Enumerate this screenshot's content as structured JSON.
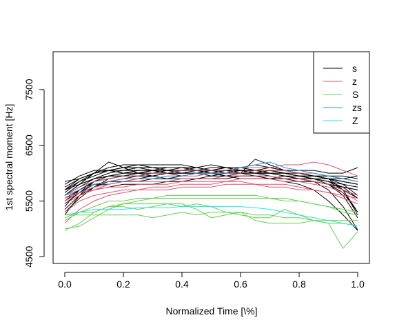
{
  "chart_data": {
    "type": "line",
    "title": "",
    "xlabel": "Normalized Time [\\%]",
    "ylabel": "1st spectral moment [Hz]",
    "xlim": [
      -0.04,
      1.04
    ],
    "ylim": [
      4380,
      8180
    ],
    "xticks": [
      0.0,
      0.2,
      0.4,
      0.6,
      0.8,
      1.0
    ],
    "xtick_labels": [
      "0.0",
      "0.2",
      "0.4",
      "0.6",
      "0.8",
      "1.0"
    ],
    "yticks": [
      4500,
      5500,
      6500,
      7500
    ],
    "ytick_labels": [
      "4500",
      "5500",
      "6500",
      "7500"
    ],
    "legend_position": "top-right",
    "legend": [
      {
        "label": "s",
        "color": "#000000"
      },
      {
        "label": "z",
        "color": "#DF536B"
      },
      {
        "label": "S",
        "color": "#61D04F"
      },
      {
        "label": "zs",
        "color": "#2297E6"
      },
      {
        "label": "Z",
        "color": "#28E2E5"
      }
    ],
    "x": [
      0.0,
      0.05,
      0.1,
      0.15,
      0.2,
      0.25,
      0.3,
      0.35,
      0.4,
      0.45,
      0.5,
      0.55,
      0.6,
      0.65,
      0.7,
      0.75,
      0.8,
      0.85,
      0.9,
      0.95,
      1.0
    ],
    "series": [
      {
        "group": "s",
        "color": "#000000",
        "values": [
          5250,
          5600,
          5850,
          5950,
          6000,
          6050,
          6050,
          6050,
          6050,
          6050,
          6050,
          6050,
          6050,
          6000,
          6000,
          6000,
          5950,
          5900,
          5800,
          5600,
          5200
        ]
      },
      {
        "group": "s",
        "color": "#000000",
        "values": [
          5600,
          5800,
          5900,
          5950,
          5950,
          6000,
          6050,
          6000,
          6050,
          6100,
          6050,
          6100,
          6050,
          6050,
          6000,
          6000,
          5950,
          5950,
          5950,
          5900,
          5850
        ]
      },
      {
        "group": "s",
        "color": "#000000",
        "values": [
          5850,
          5900,
          6000,
          6050,
          6100,
          6150,
          6150,
          6150,
          6150,
          6100,
          6150,
          6100,
          6100,
          6150,
          6100,
          6050,
          6050,
          6050,
          6000,
          6000,
          6100
        ]
      },
      {
        "group": "s",
        "color": "#000000",
        "values": [
          5700,
          5850,
          5950,
          6050,
          6100,
          6100,
          6050,
          6100,
          6100,
          6050,
          6050,
          6100,
          6050,
          6000,
          6050,
          6000,
          6000,
          5950,
          5900,
          5800,
          5600
        ]
      },
      {
        "group": "s",
        "color": "#000000",
        "values": [
          5450,
          5650,
          5800,
          5850,
          5900,
          5950,
          5950,
          6000,
          6050,
          6050,
          6050,
          6050,
          6000,
          6050,
          6050,
          6000,
          5950,
          5950,
          5900,
          5700,
          5300
        ]
      },
      {
        "group": "s",
        "color": "#000000",
        "values": [
          5300,
          5550,
          5750,
          5900,
          5950,
          6000,
          6000,
          6000,
          6050,
          6050,
          6000,
          6000,
          6050,
          6050,
          6000,
          5950,
          5900,
          5850,
          5700,
          5400,
          4980
        ]
      },
      {
        "group": "s",
        "color": "#000000",
        "values": [
          5500,
          5700,
          5850,
          5900,
          5950,
          5950,
          5950,
          6000,
          6000,
          6000,
          6000,
          5950,
          5950,
          5950,
          5950,
          5900,
          5900,
          5850,
          5800,
          5750,
          5700
        ]
      },
      {
        "group": "s",
        "color": "#000000",
        "values": [
          5650,
          5850,
          6000,
          6100,
          6150,
          6150,
          6100,
          6100,
          6100,
          6050,
          6000,
          6050,
          6050,
          6000,
          6000,
          5950,
          5950,
          5900,
          5850,
          5700,
          5250
        ]
      },
      {
        "group": "s",
        "color": "#000000",
        "values": [
          5750,
          5900,
          6000,
          6050,
          6000,
          6050,
          6050,
          6050,
          6100,
          6100,
          6050,
          6050,
          6100,
          6050,
          6050,
          6000,
          5950,
          5900,
          5900,
          5850,
          5800
        ]
      },
      {
        "group": "s",
        "color": "#000000",
        "values": [
          5400,
          5700,
          5800,
          5800,
          5850,
          5900,
          5950,
          5900,
          5950,
          6000,
          5950,
          6000,
          6000,
          5950,
          5900,
          5950,
          5900,
          5850,
          5800,
          5650,
          5300
        ]
      },
      {
        "group": "s",
        "color": "#000000",
        "values": [
          5600,
          5750,
          5900,
          5950,
          6000,
          6000,
          5950,
          6000,
          6000,
          6000,
          6050,
          6050,
          6000,
          6000,
          6000,
          5950,
          5900,
          5900,
          5850,
          5750,
          5550
        ]
      },
      {
        "group": "s",
        "color": "#000000",
        "values": [
          5550,
          5700,
          5850,
          5900,
          5950,
          6000,
          6000,
          6050,
          6000,
          6050,
          6050,
          6100,
          6050,
          6050,
          6100,
          6050,
          6000,
          5950,
          5900,
          5850,
          5800
        ]
      },
      {
        "group": "s",
        "color": "#000000",
        "values": [
          5700,
          5800,
          5900,
          6000,
          6050,
          6100,
          6100,
          6050,
          6050,
          6050,
          6100,
          6100,
          6100,
          6050,
          6050,
          6050,
          6000,
          5950,
          5950,
          5950,
          5900
        ]
      },
      {
        "group": "s",
        "color": "#000000",
        "values": [
          5800,
          5950,
          6050,
          6050,
          6000,
          6000,
          6050,
          6000,
          5950,
          6000,
          6000,
          5950,
          6000,
          6000,
          5950,
          5900,
          5900,
          5850,
          5800,
          5700,
          5550
        ]
      },
      {
        "group": "s",
        "color": "#000000",
        "values": [
          5350,
          5600,
          5750,
          5850,
          5850,
          5850,
          5900,
          5900,
          5900,
          5900,
          5950,
          5950,
          5900,
          5900,
          5900,
          5900,
          5850,
          5850,
          5800,
          5750,
          5700
        ]
      },
      {
        "group": "s",
        "color": "#000000",
        "values": [
          5500,
          5650,
          5700,
          5750,
          5800,
          5800,
          5800,
          5850,
          5850,
          5900,
          5900,
          5900,
          5950,
          5950,
          5900,
          5850,
          5800,
          5700,
          5500,
          5250,
          4970
        ]
      },
      {
        "group": "s",
        "color": "#000000",
        "values": [
          5600,
          5800,
          6000,
          6200,
          6100,
          6000,
          6050,
          6000,
          6000,
          6050,
          6000,
          6000,
          6000,
          6250,
          6150,
          6050,
          6000,
          5950,
          5900,
          5850,
          5800
        ]
      },
      {
        "group": "s",
        "color": "#000000",
        "values": [
          5450,
          5650,
          5850,
          5950,
          5950,
          5950,
          6000,
          6000,
          6000,
          6000,
          6050,
          6000,
          6000,
          6000,
          6000,
          5950,
          5900,
          5900,
          5850,
          5800,
          5750
        ]
      },
      {
        "group": "s",
        "color": "#000000",
        "values": [
          5700,
          5900,
          6000,
          6050,
          6050,
          6050,
          6050,
          6000,
          6050,
          6050,
          6000,
          6050,
          6050,
          6000,
          6000,
          6000,
          5950,
          5950,
          5900,
          5900,
          5950
        ]
      },
      {
        "group": "z",
        "color": "#DF536B",
        "values": [
          5550,
          5650,
          5700,
          5750,
          5750,
          5800,
          5800,
          5800,
          5850,
          5850,
          5850,
          5850,
          5900,
          5900,
          5900,
          5850,
          5850,
          5800,
          5750,
          5650,
          5500
        ]
      },
      {
        "group": "z",
        "color": "#DF536B",
        "values": [
          5450,
          5600,
          5700,
          5800,
          5850,
          5850,
          5850,
          5850,
          5900,
          5900,
          5900,
          5950,
          5950,
          5950,
          5950,
          5900,
          5900,
          5850,
          5800,
          5700,
          5600
        ]
      },
      {
        "group": "z",
        "color": "#DF536B",
        "values": [
          5300,
          5500,
          5600,
          5650,
          5700,
          5700,
          5750,
          5750,
          5800,
          5800,
          5800,
          5850,
          5850,
          5800,
          5800,
          5800,
          5750,
          5700,
          5650,
          5550,
          5450
        ]
      },
      {
        "group": "z",
        "color": "#DF536B",
        "values": [
          5600,
          5750,
          5850,
          5900,
          5950,
          5950,
          6000,
          6000,
          6050,
          6050,
          6050,
          6050,
          6100,
          6100,
          6100,
          6150,
          6150,
          6200,
          6150,
          6050,
          5950
        ]
      },
      {
        "group": "z",
        "color": "#DF536B",
        "values": [
          5100,
          5350,
          5500,
          5600,
          5650,
          5700,
          5700,
          5700,
          5750,
          5750,
          5750,
          5800,
          5800,
          5800,
          5750,
          5750,
          5700,
          5700,
          5650,
          5600,
          5550
        ]
      },
      {
        "group": "z",
        "color": "#DF536B",
        "values": [
          5500,
          5650,
          5750,
          5800,
          5850,
          5900,
          5900,
          5950,
          5950,
          5950,
          6000,
          6000,
          6000,
          6050,
          6050,
          6050,
          6000,
          6000,
          5950,
          5900,
          5850
        ]
      },
      {
        "group": "S",
        "color": "#61D04F",
        "values": [
          5000,
          5050,
          5200,
          5350,
          5450,
          5500,
          5550,
          5600,
          5600,
          5600,
          5600,
          5600,
          5600,
          5600,
          5550,
          5550,
          5500,
          5450,
          5400,
          5300,
          5250
        ]
      },
      {
        "group": "S",
        "color": "#61D04F",
        "values": [
          5150,
          5300,
          5300,
          5400,
          5400,
          5350,
          5400,
          5450,
          5400,
          5450,
          5400,
          5300,
          5250,
          5200,
          5200,
          5350,
          5250,
          5150,
          5100,
          4650,
          4950
        ]
      },
      {
        "group": "S",
        "color": "#61D04F",
        "values": [
          5250,
          5250,
          5250,
          5250,
          5250,
          5250,
          5200,
          5250,
          5300,
          5250,
          5300,
          5300,
          5300,
          5250,
          5250,
          5200,
          5200,
          5150,
          5150,
          5150,
          5150
        ]
      },
      {
        "group": "S",
        "color": "#61D04F",
        "values": [
          4970,
          5100,
          5300,
          5400,
          5450,
          5450,
          5450,
          5450,
          5450,
          5350,
          5200,
          5250,
          5300,
          5150,
          5100,
          5100,
          5100,
          5150,
          5100,
          5100,
          5050
        ]
      },
      {
        "group": "S",
        "color": "#61D04F",
        "values": [
          5200,
          5300,
          5400,
          5500,
          5500,
          5550,
          5550,
          5550,
          5550,
          5550,
          5550,
          5550,
          5550,
          5550,
          5550,
          5500,
          5500,
          5450,
          5400,
          5350,
          5300
        ]
      },
      {
        "group": "zs",
        "color": "#2297E6",
        "values": [
          5600,
          5700,
          5800,
          5850,
          5900,
          5900,
          5900,
          5950,
          5950,
          6000,
          6000,
          6000,
          6100,
          6150,
          6200,
          6100,
          6050,
          6000,
          5950,
          5900,
          5850
        ]
      },
      {
        "group": "Z",
        "color": "#28E2E5",
        "values": [
          5250,
          5300,
          5350,
          5350,
          5350,
          5380,
          5380,
          5380,
          5400,
          5400,
          5400,
          5400,
          5400,
          5380,
          5350,
          5300,
          5250,
          5200,
          5150,
          5100,
          5050
        ]
      }
    ]
  }
}
